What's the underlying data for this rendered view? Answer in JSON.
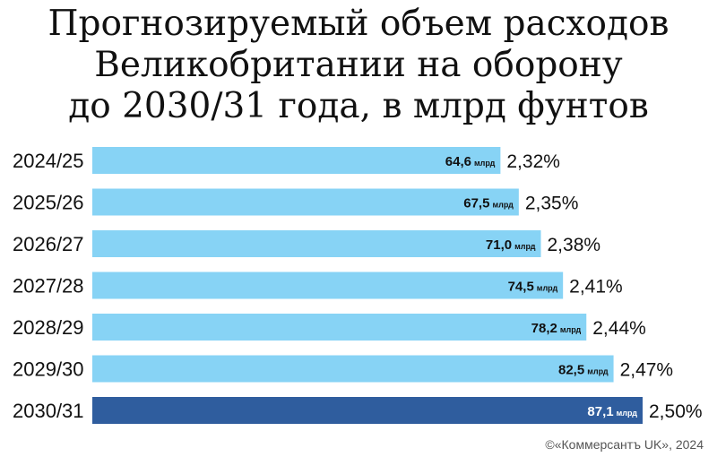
{
  "title_lines": [
    "Прогнозируемый объем расходов",
    "Великобритании на оборону",
    "до 2030/31 года, в млрд фунтов"
  ],
  "credit": "©«Коммерсантъ UK», 2024",
  "colors": {
    "bar": "#87d3f5",
    "highlight": "#2f5d9e",
    "text_dark": "#111111",
    "text_light": "#ffffff"
  },
  "chart_data": {
    "type": "bar",
    "orientation": "horizontal",
    "title": "Прогнозируемый объем расходов Великобритании на оборону до 2030/31 года, в млрд фунтов",
    "categories": [
      "2024/25",
      "2025/26",
      "2026/27",
      "2027/28",
      "2028/29",
      "2029/30",
      "2030/31"
    ],
    "values": [
      64.6,
      67.5,
      71.0,
      74.5,
      78.2,
      82.5,
      87.1
    ],
    "value_labels": [
      "64,6",
      "67,5",
      "71,0",
      "74,5",
      "78,2",
      "82,5",
      "87,1"
    ],
    "unit_label": "млрд",
    "percent_labels": [
      "2,32%",
      "2,35%",
      "2,38%",
      "2,41%",
      "2,44%",
      "2,47%",
      "2,50%"
    ],
    "highlight_index": 6,
    "xlim": [
      0,
      87.1
    ],
    "grid": false,
    "legend": "none"
  }
}
